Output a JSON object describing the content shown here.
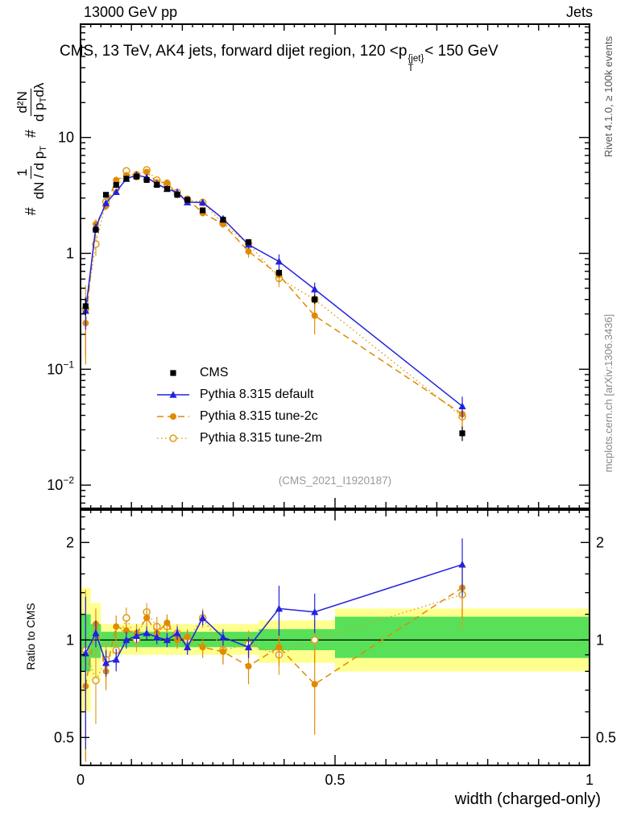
{
  "header": {
    "left": "13000 GeV pp",
    "right": "Jets"
  },
  "title": {
    "pre": "CMS, 13 TeV, AK4 jets, forward dijet region, 120 <p",
    "sup": "{jet}",
    "sub": "T",
    "post": "< 150 GeV"
  },
  "ylabel": {
    "hash1": "#",
    "hash2": "#",
    "f1_num": "1",
    "f1_den_pre": "dN / d p",
    "f1_den_sub": "T",
    "f2_num": "d²N",
    "f2_den_pre": "d p",
    "f2_den_sub": "T",
    "f2_den_post": " dλ"
  },
  "watermark": "(CMS_2021_I1920187)",
  "side_notes": {
    "rivet": "Rivet 4.1.0, ≥ 100k events",
    "mcplots": "mcplots.cern.ch [arXiv:1306.3436]"
  },
  "legend": [
    {
      "label": "CMS",
      "color": "#000000",
      "marker": "square",
      "line": "none"
    },
    {
      "label": "Pythia 8.315 default",
      "color": "#2222dd",
      "marker": "triangle",
      "line": "solid"
    },
    {
      "label": "Pythia 8.315 tune-2c",
      "color": "#e08a00",
      "marker": "circle",
      "line": "dashed"
    },
    {
      "label": "Pythia 8.315 tune-2m",
      "color": "#e0a020",
      "marker": "circle-open",
      "line": "dotted"
    }
  ],
  "chart_data": {
    "type": "line",
    "title": "CMS, 13 TeV, AK4 jets, forward dijet region, 120 < pT(jet) < 150 GeV",
    "xlabel": "width (charged-only)",
    "x": [
      0.01,
      0.03,
      0.05,
      0.07,
      0.09,
      0.11,
      0.13,
      0.15,
      0.17,
      0.19,
      0.21,
      0.24,
      0.28,
      0.33,
      0.39,
      0.46,
      0.75
    ],
    "xaxis": {
      "lim": [
        0,
        1
      ],
      "ticks": [
        {
          "v": 0,
          "label": "0"
        },
        {
          "v": 0.5,
          "label": "0.5"
        },
        {
          "v": 1,
          "label": "1"
        }
      ]
    },
    "main_axis": {
      "scale": "log",
      "ylim": [
        0.0063,
        95
      ],
      "ticks": [
        {
          "v": 10,
          "base": "10",
          "exp": ""
        },
        {
          "v": 1,
          "base": "1",
          "exp": ""
        },
        {
          "v": 0.1,
          "base": "10",
          "exp": "−1"
        },
        {
          "v": 0.01,
          "base": "10",
          "exp": "−2"
        }
      ]
    },
    "ratio_axis": {
      "scale": "log",
      "ylim": [
        0.41,
        2.52
      ],
      "label": "Ratio to CMS",
      "ticks": [
        {
          "v": 2,
          "label": "2"
        },
        {
          "v": 1,
          "label": "1"
        },
        {
          "v": 0.5,
          "label": "0.5"
        }
      ],
      "minor": [
        0.6,
        0.7,
        0.8,
        0.9,
        1.2,
        1.4,
        1.6,
        1.8,
        2.2,
        2.4
      ]
    },
    "series": [
      {
        "name": "CMS",
        "color": "#000000",
        "marker": "square",
        "line": "none",
        "values": [
          0.35,
          1.6,
          3.2,
          3.9,
          4.4,
          4.6,
          4.3,
          3.9,
          3.6,
          3.2,
          2.9,
          2.35,
          1.95,
          1.25,
          0.68,
          0.4,
          0.028
        ],
        "yerr": [
          0.06,
          0.1,
          0.15,
          0.18,
          0.2,
          0.2,
          0.18,
          0.16,
          0.15,
          0.13,
          0.12,
          0.1,
          0.09,
          0.07,
          0.05,
          0.035,
          0.004
        ]
      },
      {
        "name": "Pythia 8.315 default",
        "color": "#2222dd",
        "marker": "triangle",
        "line": "solid",
        "values": [
          0.32,
          1.68,
          2.72,
          3.39,
          4.4,
          4.74,
          4.52,
          3.98,
          3.6,
          3.36,
          2.76,
          2.75,
          1.99,
          1.19,
          0.85,
          0.49,
          0.048
        ],
        "yerr": [
          0.1,
          0.12,
          0.18,
          0.2,
          0.22,
          0.22,
          0.2,
          0.18,
          0.16,
          0.15,
          0.13,
          0.12,
          0.1,
          0.09,
          0.13,
          0.07,
          0.01
        ],
        "ratio": [
          0.91,
          1.05,
          0.85,
          0.87,
          1.0,
          1.03,
          1.05,
          1.02,
          1.0,
          1.05,
          0.95,
          1.17,
          1.02,
          0.95,
          1.25,
          1.22,
          1.71
        ],
        "ratio_err": [
          0.45,
          0.1,
          0.08,
          0.07,
          0.06,
          0.05,
          0.05,
          0.05,
          0.05,
          0.05,
          0.05,
          0.06,
          0.06,
          0.07,
          0.22,
          0.17,
          0.35
        ]
      },
      {
        "name": "Pythia 8.315 tune-2c",
        "color": "#e08a00",
        "marker": "circle",
        "line": "dashed",
        "values": [
          0.25,
          1.79,
          2.56,
          4.29,
          4.71,
          4.83,
          5.03,
          4.1,
          4.07,
          3.2,
          2.96,
          2.23,
          1.79,
          1.04,
          0.65,
          0.29,
          0.041
        ],
        "yerr": [
          0.14,
          0.18,
          0.2,
          0.3,
          0.3,
          0.28,
          0.3,
          0.25,
          0.22,
          0.2,
          0.18,
          0.15,
          0.13,
          0.12,
          0.1,
          0.09,
          0.009
        ],
        "ratio": [
          0.72,
          1.12,
          0.8,
          1.1,
          1.07,
          1.05,
          1.17,
          1.05,
          1.13,
          1.0,
          1.02,
          0.95,
          0.92,
          0.83,
          0.95,
          0.73,
          1.45
        ],
        "ratio_err": [
          0.3,
          0.13,
          0.1,
          0.09,
          0.08,
          0.07,
          0.07,
          0.07,
          0.07,
          0.06,
          0.06,
          0.07,
          0.08,
          0.1,
          0.12,
          0.22,
          0.28
        ]
      },
      {
        "name": "Pythia 8.315 tune-2m",
        "color": "#e0a020",
        "marker": "circle-open",
        "line": "dotted",
        "values": [
          0.33,
          1.2,
          2.78,
          3.63,
          5.15,
          4.6,
          5.25,
          4.29,
          3.96,
          3.36,
          2.9,
          2.75,
          1.81,
          1.21,
          0.61,
          0.4,
          0.039
        ],
        "yerr": [
          0.2,
          0.25,
          0.25,
          0.3,
          0.35,
          0.3,
          0.32,
          0.28,
          0.24,
          0.2,
          0.18,
          0.16,
          0.13,
          0.12,
          0.1,
          0.09,
          0.009
        ],
        "ratio": [
          0.93,
          0.75,
          0.87,
          0.93,
          1.17,
          1.0,
          1.22,
          1.1,
          1.1,
          1.05,
          1.0,
          1.17,
          0.93,
          0.97,
          0.9,
          1.0,
          1.38
        ],
        "ratio_err": [
          0.5,
          0.2,
          0.12,
          0.1,
          0.09,
          0.08,
          0.08,
          0.08,
          0.07,
          0.07,
          0.07,
          0.08,
          0.08,
          0.1,
          0.12,
          0.15,
          0.3
        ]
      }
    ],
    "bands": {
      "yellow": {
        "color": "#ffff8f",
        "segments": [
          [
            0,
            0.02,
            0.6,
            1.45
          ],
          [
            0.02,
            0.04,
            0.75,
            1.3
          ],
          [
            0.04,
            0.35,
            0.9,
            1.12
          ],
          [
            0.35,
            0.5,
            0.85,
            1.15
          ],
          [
            0.5,
            1.0,
            0.8,
            1.25
          ]
        ]
      },
      "green": {
        "color": "#58e058",
        "segments": [
          [
            0,
            0.02,
            0.8,
            1.2
          ],
          [
            0.02,
            0.04,
            0.88,
            1.12
          ],
          [
            0.04,
            0.35,
            0.95,
            1.06
          ],
          [
            0.35,
            0.5,
            0.93,
            1.08
          ],
          [
            0.5,
            1.0,
            0.88,
            1.18
          ]
        ]
      }
    }
  }
}
